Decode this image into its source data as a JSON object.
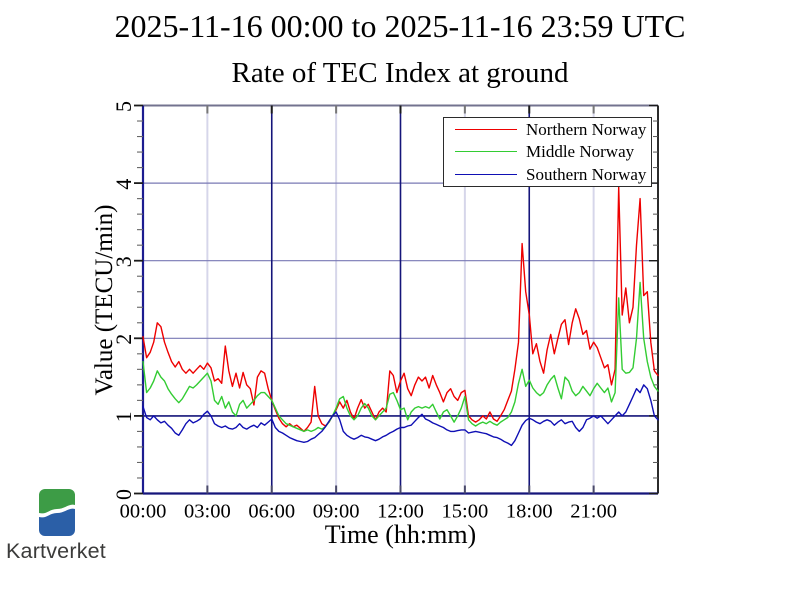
{
  "header": {
    "title_line1": "2025-11-16 00:00 to 2025-11-16 23:59 UTC",
    "title_line2": "Rate of TEC Index at ground"
  },
  "logo": {
    "text": "Kartverket",
    "green": "#3d9c46",
    "blue": "#2b5fa7",
    "text_color": "#3b3b3a"
  },
  "chart_data": {
    "type": "line",
    "title": "2025-11-16 00:00 to 2025-11-16 23:59 UTC",
    "subtitle": "Rate of TEC Index at ground",
    "xlabel": "Time (hh:mm)",
    "ylabel": "Value (TECU/min)",
    "ylim": [
      0,
      5
    ],
    "xlim_minutes": [
      0,
      1440
    ],
    "y_ticks": [
      0,
      1,
      2,
      3,
      4,
      5
    ],
    "y_minor_step": 0.2,
    "x_ticks": [
      "00:00",
      "03:00",
      "06:00",
      "09:00",
      "12:00",
      "15:00",
      "18:00",
      "21:00"
    ],
    "x_tick_minutes": [
      0,
      180,
      360,
      540,
      720,
      900,
      1080,
      1260
    ],
    "grid": {
      "h_major_color": "#7878b4",
      "h_unity_color": "#15157a",
      "v_major_color": "#15157a",
      "v_minor_color": "#d6d6ea",
      "frame_top": "#73738f",
      "frame_right": "#2b2b2b",
      "frame_bottom": "#15157a",
      "frame_left": "#1c1c90",
      "tick_major": "#1c1c1c",
      "tick_minor": "#666666",
      "tick_bottom": "#4a4a6a",
      "tick_top_minor": "#777777"
    },
    "legend": {
      "position": "top-right",
      "border_color": "#2b2b2b",
      "bg": "#ffffff"
    },
    "x_step_min": 10,
    "series": [
      {
        "name": "Northern Norway",
        "color": "#ee0000",
        "values": [
          2.02,
          1.75,
          1.82,
          1.95,
          2.2,
          2.15,
          1.95,
          1.82,
          1.7,
          1.63,
          1.7,
          1.6,
          1.55,
          1.6,
          1.55,
          1.6,
          1.65,
          1.6,
          1.68,
          1.62,
          1.45,
          1.48,
          1.42,
          1.9,
          1.58,
          1.38,
          1.55,
          1.36,
          1.56,
          1.4,
          1.35,
          1.14,
          1.5,
          1.58,
          1.55,
          1.35,
          1.2,
          1.08,
          0.97,
          0.9,
          0.86,
          0.9,
          0.86,
          0.88,
          0.84,
          0.8,
          0.85,
          0.92,
          1.38,
          1.0,
          0.9,
          0.87,
          0.92,
          1.0,
          1.08,
          1.18,
          1.1,
          1.2,
          1.05,
          0.96,
          1.1,
          1.21,
          1.1,
          1.15,
          1.05,
          0.95,
          1.05,
          1.1,
          1.05,
          1.58,
          1.52,
          1.3,
          1.45,
          1.55,
          1.35,
          1.26,
          1.4,
          1.5,
          1.45,
          1.5,
          1.36,
          1.52,
          1.4,
          1.3,
          1.18,
          1.3,
          1.35,
          1.25,
          1.2,
          1.3,
          1.33,
          1.0,
          0.95,
          0.92,
          0.95,
          1.0,
          0.96,
          1.05,
          0.96,
          0.93,
          1.0,
          1.08,
          1.2,
          1.32,
          1.6,
          1.95,
          3.22,
          2.6,
          2.3,
          1.8,
          1.93,
          1.7,
          1.55,
          1.85,
          2.05,
          1.8,
          2.0,
          2.18,
          2.24,
          1.92,
          2.2,
          2.38,
          2.25,
          2.05,
          2.1,
          1.86,
          1.95,
          1.88,
          1.75,
          1.62,
          1.66,
          1.4,
          1.6,
          3.95,
          2.3,
          2.65,
          2.2,
          2.4,
          3.2,
          3.8,
          2.55,
          2.6,
          1.95,
          1.58,
          1.52
        ]
      },
      {
        "name": "Middle Norway",
        "color": "#33cc33",
        "values": [
          1.7,
          1.3,
          1.36,
          1.45,
          1.58,
          1.5,
          1.45,
          1.35,
          1.28,
          1.22,
          1.17,
          1.22,
          1.3,
          1.38,
          1.36,
          1.4,
          1.45,
          1.5,
          1.55,
          1.45,
          1.2,
          1.15,
          1.25,
          1.1,
          1.18,
          1.05,
          1.0,
          1.15,
          1.2,
          1.1,
          1.15,
          1.2,
          1.26,
          1.3,
          1.3,
          1.25,
          1.2,
          1.1,
          1.0,
          0.95,
          0.9,
          0.88,
          0.86,
          0.84,
          0.82,
          0.8,
          0.82,
          0.8,
          0.82,
          0.85,
          0.83,
          0.86,
          0.92,
          1.0,
          1.1,
          1.22,
          1.25,
          1.1,
          1.0,
          0.95,
          1.0,
          1.1,
          1.16,
          1.1,
          1.0,
          0.95,
          1.0,
          1.05,
          1.1,
          1.28,
          1.3,
          1.2,
          1.08,
          1.1,
          0.95,
          1.05,
          1.1,
          1.12,
          1.1,
          1.12,
          1.1,
          1.15,
          1.05,
          0.96,
          1.05,
          1.08,
          1.0,
          0.92,
          1.0,
          1.1,
          1.25,
          0.95,
          0.9,
          0.87,
          0.9,
          0.92,
          0.9,
          0.93,
          0.9,
          0.88,
          0.92,
          0.95,
          0.98,
          1.05,
          1.18,
          1.42,
          1.6,
          1.38,
          1.46,
          1.36,
          1.3,
          1.26,
          1.3,
          1.4,
          1.47,
          1.52,
          1.36,
          1.22,
          1.5,
          1.45,
          1.32,
          1.26,
          1.3,
          1.38,
          1.32,
          1.26,
          1.35,
          1.42,
          1.36,
          1.3,
          1.36,
          1.18,
          1.3,
          2.52,
          1.6,
          1.55,
          1.56,
          1.62,
          2.0,
          2.72,
          2.0,
          1.7,
          1.5,
          1.38,
          1.32
        ]
      },
      {
        "name": "Southern Norway",
        "color": "#0f0fb4",
        "values": [
          1.12,
          0.98,
          0.95,
          1.0,
          0.95,
          0.91,
          0.93,
          0.88,
          0.84,
          0.78,
          0.75,
          0.82,
          0.9,
          0.95,
          0.91,
          0.93,
          0.96,
          1.02,
          1.06,
          1.0,
          0.9,
          0.87,
          0.85,
          0.87,
          0.84,
          0.83,
          0.85,
          0.9,
          0.85,
          0.83,
          0.86,
          0.88,
          0.85,
          0.91,
          0.88,
          0.92,
          0.96,
          0.85,
          0.8,
          0.78,
          0.75,
          0.72,
          0.7,
          0.68,
          0.67,
          0.66,
          0.67,
          0.7,
          0.72,
          0.76,
          0.8,
          0.86,
          0.93,
          1.0,
          1.05,
          0.95,
          0.8,
          0.75,
          0.72,
          0.7,
          0.72,
          0.75,
          0.73,
          0.72,
          0.7,
          0.68,
          0.7,
          0.73,
          0.75,
          0.78,
          0.8,
          0.83,
          0.85,
          0.85,
          0.87,
          0.88,
          0.93,
          0.98,
          1.02,
          0.96,
          0.94,
          0.91,
          0.89,
          0.87,
          0.85,
          0.82,
          0.8,
          0.8,
          0.81,
          0.82,
          0.82,
          0.78,
          0.79,
          0.8,
          0.79,
          0.78,
          0.77,
          0.75,
          0.73,
          0.72,
          0.7,
          0.67,
          0.65,
          0.62,
          0.68,
          0.78,
          0.88,
          0.94,
          0.97,
          0.95,
          0.92,
          0.9,
          0.93,
          0.95,
          0.93,
          0.88,
          0.92,
          0.95,
          0.9,
          0.92,
          0.93,
          0.85,
          0.8,
          0.85,
          0.95,
          0.97,
          1.0,
          0.97,
          1.0,
          0.95,
          0.9,
          0.95,
          1.0,
          1.05,
          1.0,
          1.05,
          1.15,
          1.25,
          1.35,
          1.3,
          1.4,
          1.35,
          1.2,
          1.0,
          0.95
        ]
      }
    ]
  }
}
